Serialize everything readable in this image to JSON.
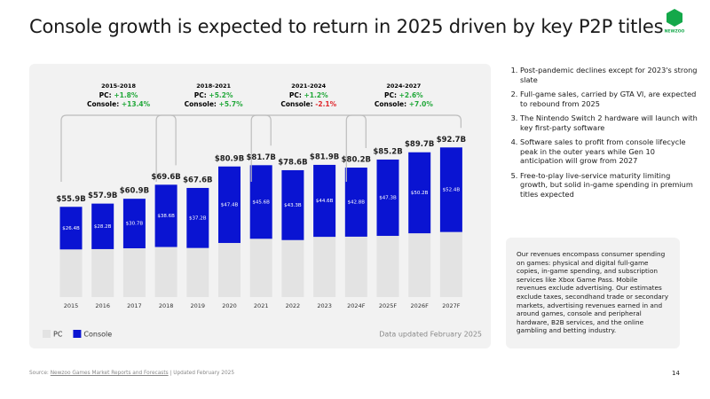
{
  "header": {
    "title": "Console growth is expected to return in 2025 driven by key P2P titles",
    "logo": "NEWZOO"
  },
  "chart_data": {
    "type": "stacked-bar",
    "categories": [
      "2015",
      "2016",
      "2017",
      "2018",
      "2019",
      "2020",
      "2021",
      "2022",
      "2023",
      "2024F",
      "2025F",
      "2026F",
      "2027F"
    ],
    "series": [
      {
        "name": "PC",
        "color": "#e3e3e3",
        "values": [
          29.5,
          29.7,
          30.2,
          31.0,
          30.4,
          33.5,
          36.1,
          35.3,
          37.3,
          37.4,
          37.9,
          39.5,
          40.3
        ]
      },
      {
        "name": "Console",
        "color": "#0a14d2",
        "values": [
          26.4,
          28.2,
          30.7,
          38.6,
          37.2,
          47.4,
          45.6,
          43.3,
          44.6,
          42.8,
          47.3,
          50.2,
          52.4
        ],
        "value_labels": [
          "$26.4B",
          "$28.2B",
          "$30.7B",
          "$38.6B",
          "$37.2B",
          "$47.4B",
          "$45.6B",
          "$43.3B",
          "$44.6B",
          "$42.8B",
          "$47.3B",
          "$50.2B",
          "$52.4B"
        ]
      }
    ],
    "totals": {
      "values": [
        55.9,
        57.9,
        60.9,
        69.6,
        67.6,
        80.9,
        81.7,
        78.6,
        81.9,
        80.2,
        85.2,
        89.7,
        92.7
      ],
      "value_labels": [
        "$55.9B",
        "$57.9B",
        "$60.9B",
        "$69.6B",
        "$67.6B",
        "$80.9B",
        "$81.7B",
        "$78.6B",
        "$81.9B",
        "$80.2B",
        "$85.2B",
        "$89.7B",
        "$92.7B"
      ]
    },
    "periods": [
      {
        "label": "2015-2018",
        "pc_label": "PC:",
        "pc": "+1.8%",
        "console_label": "Console:",
        "console": "+13.4%"
      },
      {
        "label": "2018-2021",
        "pc_label": "PC:",
        "pc": "+5.2%",
        "console_label": "Console:",
        "console": "+5.7%"
      },
      {
        "label": "2021-2024",
        "pc_label": "PC:",
        "pc": "+1.2%",
        "console_label": "Console:",
        "console": "-2.1%"
      },
      {
        "label": "2024-2027",
        "pc_label": "PC:",
        "pc": "+2.6%",
        "console_label": "Console:",
        "console": "+7.0%"
      }
    ],
    "note": "Data updated February 2025"
  },
  "notes": {
    "items": [
      "Post-pandemic declines except for 2023's strong slate",
      "Full-game sales, carried by GTA VI, are expected to rebound from 2025",
      "The Nintendo Switch 2 hardware will launch with key first-party software",
      "Software sales to profit from console lifecycle peak in the outer years while Gen 10 anticipation will grow from 2027",
      "Free-to-play live-service maturity limiting growth, but solid in-game spending in premium titles expected"
    ],
    "box": "Our revenues encompass consumer spending on games: physical and digital full-game copies, in-game spending, and subscription services like Xbox Game Pass. Mobile revenues exclude advertising. Our estimates exclude taxes, secondhand trade or secondary markets, advertising revenues earned in and around games, console and peripheral hardware, B2B services, and the online gambling and betting industry."
  },
  "footer": {
    "source": "Source:",
    "link": "Newzoo Games Market Reports and Forecasts",
    "updated": "| Updated February 2025",
    "page": "14"
  }
}
